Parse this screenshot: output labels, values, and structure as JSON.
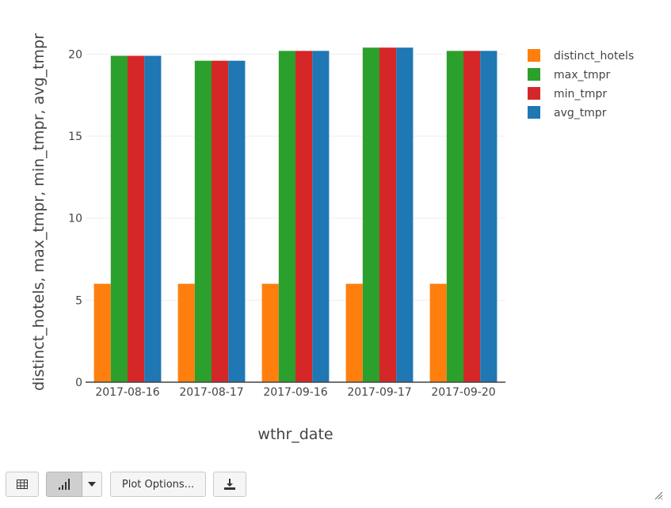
{
  "chart_data": {
    "type": "bar",
    "categories": [
      "2017-08-16",
      "2017-08-17",
      "2017-09-16",
      "2017-09-17",
      "2017-09-20"
    ],
    "series": [
      {
        "name": "distinct_hotels",
        "color": "#ff7f0e",
        "values": [
          6,
          6,
          6,
          6,
          6
        ]
      },
      {
        "name": "max_tmpr",
        "color": "#2ca02c",
        "values": [
          19.9,
          19.6,
          20.2,
          20.4,
          20.2
        ]
      },
      {
        "name": "min_tmpr",
        "color": "#d62728",
        "values": [
          19.9,
          19.6,
          20.2,
          20.4,
          20.2
        ]
      },
      {
        "name": "avg_tmpr",
        "color": "#1f77b4",
        "values": [
          19.9,
          19.6,
          20.2,
          20.4,
          20.2
        ]
      }
    ],
    "xlabel": "wthr_date",
    "ylabel": "distinct_hotels, max_tmpr, min_tmpr, avg_tmpr",
    "ylim": [
      0,
      22
    ],
    "yticks": [
      0,
      5,
      10,
      15,
      20
    ],
    "grid": true,
    "legend_position": "top-right"
  },
  "toolbar": {
    "plot_options_label": "Plot Options...",
    "table_icon": "table-icon",
    "chart_icon": "bar-chart-icon",
    "caret_icon": "chevron-down-icon",
    "download_icon": "download-icon"
  }
}
